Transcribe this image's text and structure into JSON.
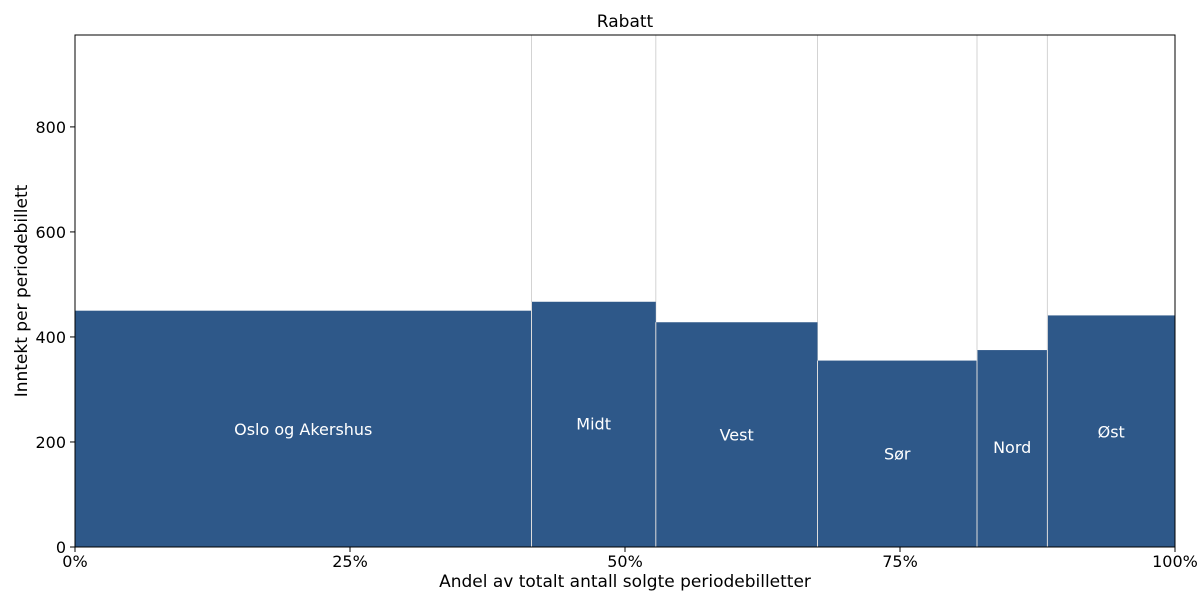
{
  "chart_data": {
    "type": "bar",
    "title": "Rabatt",
    "xlabel": "Andel av totalt antall solgte periodebilletter",
    "ylabel": "Inntekt per periodebillett",
    "xlim": [
      0,
      100
    ],
    "ylim": [
      0,
      975
    ],
    "x_ticks": [
      0,
      25,
      50,
      75,
      100
    ],
    "x_tick_labels": [
      "0%",
      "25%",
      "50%",
      "75%",
      "100%"
    ],
    "y_ticks": [
      0,
      200,
      400,
      600,
      800
    ],
    "y_tick_labels": [
      "0",
      "200",
      "400",
      "600",
      "800"
    ],
    "grid": false,
    "bar_color": "#2e5889",
    "separator_color": "#d3d3d3",
    "label_color": "#ffffff",
    "bars": [
      {
        "label": "Oslo og Akershus",
        "x_start": 0.0,
        "x_end": 41.5,
        "value": 450,
        "label_y": 225
      },
      {
        "label": "Midt",
        "x_start": 41.5,
        "x_end": 52.8,
        "value": 467,
        "label_y": 235
      },
      {
        "label": "Vest",
        "x_start": 52.8,
        "x_end": 67.5,
        "value": 428,
        "label_y": 214
      },
      {
        "label": "Sør",
        "x_start": 67.5,
        "x_end": 82.0,
        "value": 355,
        "label_y": 178
      },
      {
        "label": "Nord",
        "x_start": 82.0,
        "x_end": 88.4,
        "value": 375,
        "label_y": 190
      },
      {
        "label": "Øst",
        "x_start": 88.4,
        "x_end": 100,
        "value": 441,
        "label_y": 220
      }
    ]
  }
}
